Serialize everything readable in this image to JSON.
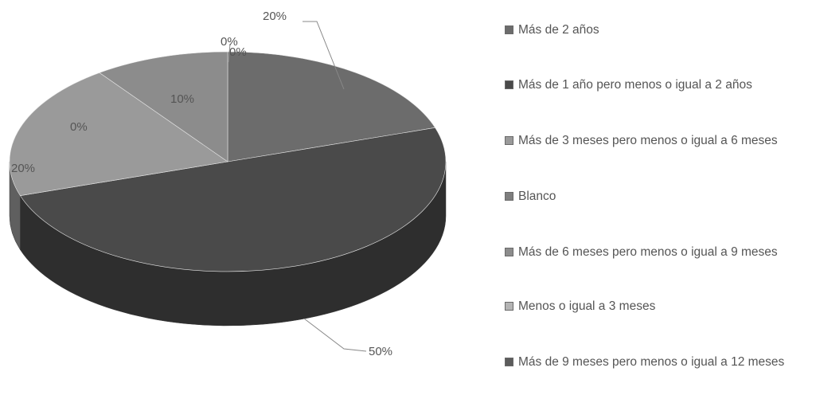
{
  "chart_data": {
    "type": "pie",
    "title": "",
    "categories": [
      "Más de 2 años",
      "Más de 1 año pero menos o igual a 2 años",
      "Más de 3 meses pero menos o igual a 6 meses",
      "Blanco",
      "Más de 6 meses pero menos o igual a 9 meses",
      "Menos o igual a 3 meses",
      "Más de 9 meses pero menos o igual a 12 meses"
    ],
    "values": [
      20,
      50,
      20,
      0,
      10,
      0,
      0
    ],
    "value_labels": [
      "20%",
      "50%",
      "20%",
      "0%",
      "10%",
      "0%",
      "0%"
    ],
    "colors": [
      "#6c6c6c",
      "#4a4a4a",
      "#9a9a9a",
      "#7e7e7e",
      "#8c8c8c",
      "#b4b4b4",
      "#5c5c5c"
    ],
    "style": "3d-pie",
    "legend_position": "right"
  }
}
